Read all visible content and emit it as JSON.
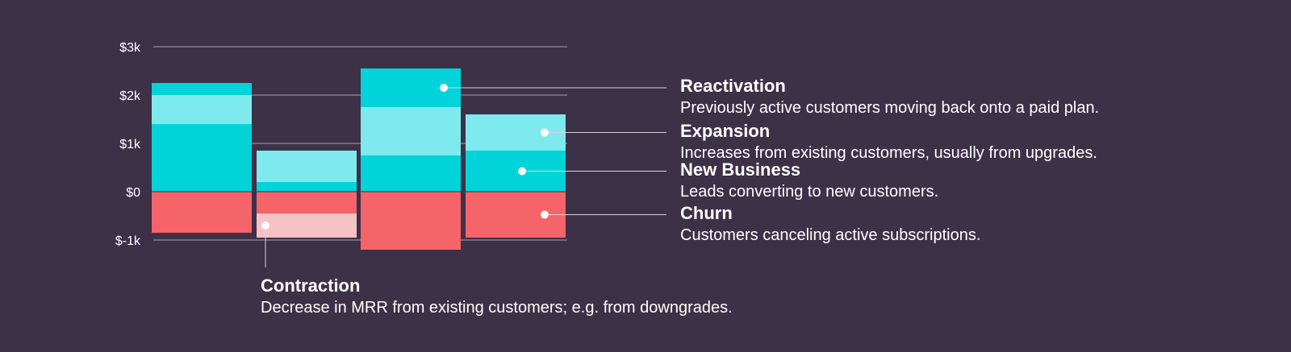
{
  "chart_data": {
    "type": "bar",
    "stacked": true,
    "ylim": [
      -1000,
      3000
    ],
    "yticks": [
      {
        "value": 3000,
        "label": "$3k"
      },
      {
        "value": 2000,
        "label": "$2k"
      },
      {
        "value": 1000,
        "label": "$1k"
      },
      {
        "value": 0,
        "label": "$0"
      },
      {
        "value": -1000,
        "label": "$-1k"
      }
    ],
    "grid": true,
    "categories": [
      "",
      "",
      "",
      ""
    ],
    "series": [
      {
        "key": "new_business",
        "color": "#00d4d9",
        "values": [
          1400,
          200,
          750,
          850
        ]
      },
      {
        "key": "expansion",
        "color": "#7eeaed",
        "values": [
          600,
          650,
          1000,
          750
        ]
      },
      {
        "key": "reactivation",
        "color": "#00d4d9",
        "values": [
          250,
          0,
          800,
          0
        ]
      },
      {
        "key": "churn",
        "color": "#f46468",
        "values": [
          -850,
          -450,
          -1200,
          -950
        ]
      },
      {
        "key": "contraction",
        "color": "#f6c2c3",
        "values": [
          0,
          -500,
          0,
          0
        ]
      }
    ],
    "annotations": [
      {
        "key": "reactivation",
        "title": "Reactivation",
        "text": "Previously active customers moving back onto a paid plan."
      },
      {
        "key": "expansion",
        "title": "Expansion",
        "text": "Increases from existing customers, usually from upgrades."
      },
      {
        "key": "new_business",
        "title": "New Business",
        "text": "Leads converting to new customers."
      },
      {
        "key": "churn",
        "title": "Churn",
        "text": "Customers canceling active subscriptions."
      },
      {
        "key": "contraction",
        "title": "Contraction",
        "text": "Decrease in MRR from existing customers; e.g. from downgrades."
      }
    ]
  },
  "colors": {
    "background": "#3d3148",
    "gridline": "#a79fb0",
    "leader": "#d8d3dd",
    "dot": "#ffffff"
  }
}
